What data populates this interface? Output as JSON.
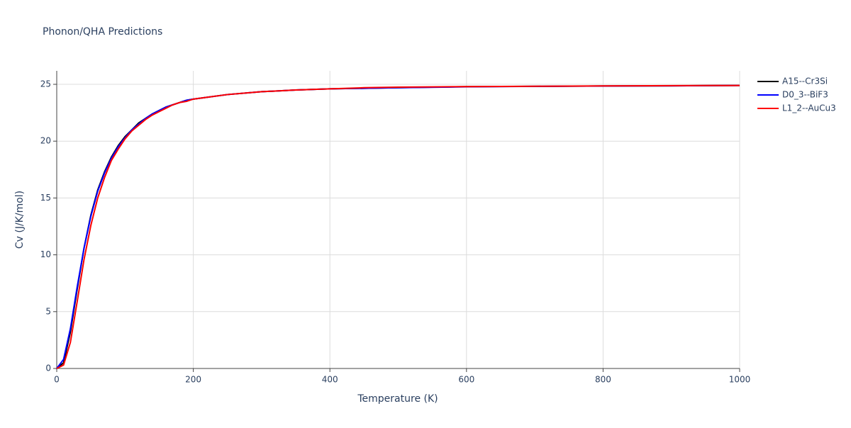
{
  "chart_data": {
    "type": "line",
    "title": "Phonon/QHA Predictions",
    "x_label": "Temperature (K)",
    "y_label": "Cv (J/K/mol)",
    "x": [
      0,
      10,
      20,
      30,
      40,
      50,
      60,
      70,
      80,
      90,
      100,
      110,
      120,
      130,
      140,
      150,
      160,
      170,
      180,
      190,
      200,
      250,
      300,
      350,
      400,
      450,
      500,
      600,
      700,
      800,
      900,
      1000
    ],
    "series": [
      {
        "name": "A15--Cr3Si",
        "color": "#000000",
        "values": [
          0,
          0.5,
          3.2,
          7.0,
          10.6,
          13.5,
          15.7,
          17.3,
          18.6,
          19.6,
          20.4,
          21.0,
          21.6,
          22.0,
          22.4,
          22.7,
          23.0,
          23.2,
          23.4,
          23.6,
          23.7,
          24.1,
          24.35,
          24.5,
          24.6,
          24.65,
          24.7,
          24.8,
          24.82,
          24.85,
          24.87,
          24.9
        ]
      },
      {
        "name": "D0_3--BiF3",
        "color": "#0000ff",
        "values": [
          0,
          0.8,
          3.5,
          7.2,
          10.6,
          13.4,
          15.6,
          17.2,
          18.5,
          19.5,
          20.3,
          21.0,
          21.5,
          22.0,
          22.4,
          22.7,
          23.0,
          23.2,
          23.4,
          23.6,
          23.7,
          24.1,
          24.35,
          24.5,
          24.6,
          24.65,
          24.7,
          24.78,
          24.82,
          24.85,
          24.87,
          24.9
        ]
      },
      {
        "name": "L1_2--AuCu3",
        "color": "#ff0000",
        "values": [
          0,
          0.3,
          2.3,
          5.9,
          9.6,
          12.6,
          15.0,
          16.8,
          18.3,
          19.3,
          20.2,
          20.9,
          21.4,
          21.9,
          22.3,
          22.6,
          22.9,
          23.2,
          23.4,
          23.5,
          23.7,
          24.1,
          24.35,
          24.5,
          24.6,
          24.7,
          24.75,
          24.8,
          24.83,
          24.86,
          24.88,
          24.9
        ]
      }
    ],
    "xlim": [
      0,
      1000
    ],
    "xticks": [
      0,
      200,
      400,
      600,
      800,
      1000
    ],
    "ylim": [
      0,
      25
    ],
    "yticks": [
      0,
      5,
      10,
      15,
      20,
      25
    ],
    "grid": true,
    "legend": "right"
  }
}
